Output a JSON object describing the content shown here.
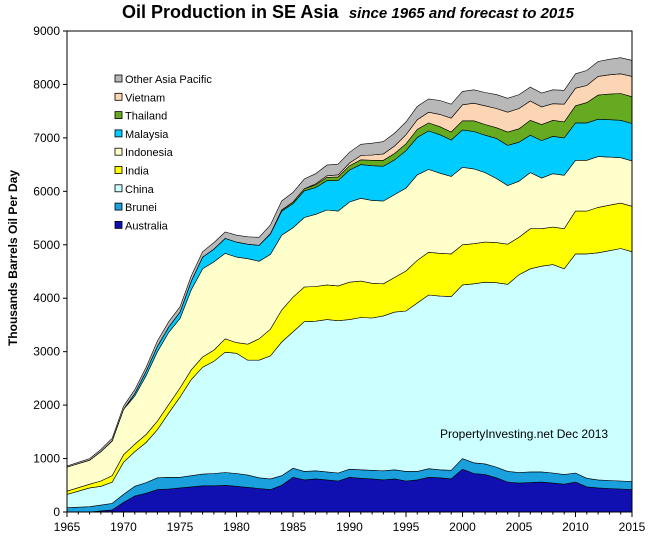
{
  "chart_data": {
    "type": "area",
    "title": "Oil Production in SE Asia",
    "subtitle": "since 1965 and forecast to 2015",
    "xlabel": "",
    "ylabel": "Thousands Barrels Oil Per Day",
    "xlim": [
      1965,
      2015
    ],
    "ylim": [
      0,
      9000
    ],
    "x_ticks": [
      1965,
      1970,
      1975,
      1980,
      1985,
      1990,
      1995,
      2000,
      2005,
      2010,
      2015
    ],
    "y_ticks": [
      0,
      1000,
      2000,
      3000,
      4000,
      5000,
      6000,
      7000,
      8000,
      9000
    ],
    "stacked": true,
    "grid": false,
    "legend_position": "top-left",
    "annotation": "PropertyInvesting.net  Dec 2013",
    "x": [
      1965,
      1966,
      1967,
      1968,
      1969,
      1970,
      1971,
      1972,
      1973,
      1974,
      1975,
      1976,
      1977,
      1978,
      1979,
      1980,
      1981,
      1982,
      1983,
      1984,
      1985,
      1986,
      1987,
      1988,
      1989,
      1990,
      1991,
      1992,
      1993,
      1994,
      1995,
      1996,
      1997,
      1998,
      1999,
      2000,
      2001,
      2002,
      2003,
      2004,
      2005,
      2006,
      2007,
      2008,
      2009,
      2010,
      2011,
      2012,
      2013,
      2014,
      2015
    ],
    "series": [
      {
        "name": "Australia",
        "color": "#1010b0",
        "values": [
          0,
          0,
          0,
          20,
          40,
          180,
          300,
          350,
          420,
          430,
          450,
          470,
          490,
          490,
          500,
          480,
          460,
          440,
          420,
          500,
          650,
          600,
          620,
          600,
          580,
          650,
          630,
          620,
          600,
          620,
          580,
          600,
          650,
          640,
          620,
          800,
          720,
          700,
          640,
          560,
          540,
          550,
          560,
          540,
          520,
          560,
          470,
          450,
          440,
          430,
          420
        ]
      },
      {
        "name": "Brunei",
        "color": "#1aa0dc",
        "values": [
          80,
          90,
          100,
          110,
          120,
          150,
          180,
          200,
          220,
          220,
          200,
          210,
          220,
          230,
          240,
          240,
          230,
          200,
          200,
          180,
          170,
          160,
          150,
          150,
          150,
          150,
          160,
          160,
          170,
          170,
          180,
          160,
          160,
          150,
          160,
          200,
          200,
          200,
          200,
          200,
          200,
          200,
          190,
          190,
          180,
          170,
          160,
          150,
          150,
          150,
          150
        ]
      },
      {
        "name": "China",
        "color": "#ccffff",
        "values": [
          250,
          300,
          350,
          350,
          400,
          600,
          650,
          750,
          900,
          1200,
          1500,
          1800,
          2000,
          2100,
          2250,
          2250,
          2150,
          2200,
          2300,
          2500,
          2550,
          2800,
          2800,
          2850,
          2850,
          2800,
          2850,
          2850,
          2900,
          2950,
          3000,
          3150,
          3250,
          3250,
          3250,
          3250,
          3350,
          3400,
          3450,
          3500,
          3700,
          3800,
          3850,
          3900,
          3850,
          4100,
          4200,
          4250,
          4300,
          4350,
          4300
        ]
      },
      {
        "name": "India",
        "color": "#ffff00",
        "values": [
          60,
          65,
          70,
          100,
          120,
          140,
          140,
          150,
          160,
          160,
          170,
          180,
          190,
          210,
          250,
          200,
          300,
          400,
          500,
          600,
          650,
          650,
          650,
          650,
          650,
          700,
          680,
          650,
          600,
          650,
          750,
          800,
          800,
          800,
          800,
          750,
          750,
          750,
          750,
          750,
          700,
          750,
          700,
          700,
          750,
          800,
          800,
          850,
          850,
          850,
          850
        ]
      },
      {
        "name": "Indonesia",
        "color": "#ffffcc",
        "values": [
          450,
          450,
          450,
          550,
          650,
          850,
          900,
          1100,
          1300,
          1350,
          1300,
          1500,
          1650,
          1650,
          1600,
          1600,
          1600,
          1450,
          1400,
          1400,
          1300,
          1300,
          1350,
          1400,
          1400,
          1500,
          1550,
          1550,
          1550,
          1550,
          1550,
          1600,
          1550,
          1500,
          1450,
          1450,
          1400,
          1300,
          1200,
          1100,
          1050,
          1050,
          950,
          1000,
          1000,
          950,
          950,
          950,
          900,
          850,
          850
        ]
      },
      {
        "name": "Malaysia",
        "color": "#00ccff",
        "values": [
          0,
          0,
          0,
          0,
          0,
          0,
          50,
          80,
          100,
          100,
          120,
          160,
          220,
          240,
          280,
          280,
          270,
          300,
          380,
          450,
          450,
          500,
          500,
          550,
          570,
          600,
          630,
          650,
          650,
          650,
          700,
          700,
          720,
          720,
          680,
          700,
          700,
          700,
          750,
          750,
          730,
          700,
          700,
          700,
          700,
          700,
          700,
          700,
          700,
          700,
          700
        ]
      },
      {
        "name": "Thailand",
        "color": "#66aa22",
        "values": [
          0,
          0,
          0,
          0,
          0,
          0,
          0,
          0,
          0,
          0,
          0,
          0,
          0,
          0,
          0,
          0,
          0,
          0,
          10,
          20,
          30,
          40,
          50,
          60,
          70,
          80,
          90,
          100,
          110,
          120,
          130,
          150,
          150,
          150,
          150,
          170,
          200,
          200,
          200,
          250,
          250,
          280,
          300,
          300,
          300,
          320,
          380,
          450,
          480,
          500,
          500
        ]
      },
      {
        "name": "Vietnam",
        "color": "#fcd5b5",
        "values": [
          0,
          0,
          0,
          0,
          0,
          0,
          0,
          0,
          0,
          0,
          0,
          0,
          0,
          0,
          0,
          0,
          0,
          0,
          0,
          0,
          0,
          0,
          20,
          30,
          40,
          50,
          80,
          100,
          120,
          140,
          170,
          180,
          200,
          230,
          260,
          300,
          330,
          350,
          360,
          370,
          380,
          360,
          330,
          310,
          330,
          330,
          320,
          350,
          360,
          370,
          380
        ]
      },
      {
        "name": "Other Asia Pacific",
        "color": "#b8b8b8",
        "values": [
          20,
          25,
          30,
          40,
          50,
          60,
          70,
          80,
          100,
          100,
          100,
          100,
          100,
          120,
          120,
          130,
          140,
          150,
          160,
          170,
          180,
          180,
          190,
          200,
          200,
          200,
          210,
          220,
          230,
          240,
          240,
          250,
          250,
          260,
          260,
          250,
          250,
          250,
          260,
          260,
          260,
          260,
          260,
          260,
          260,
          270,
          280,
          280,
          290,
          300,
          300
        ]
      }
    ]
  }
}
